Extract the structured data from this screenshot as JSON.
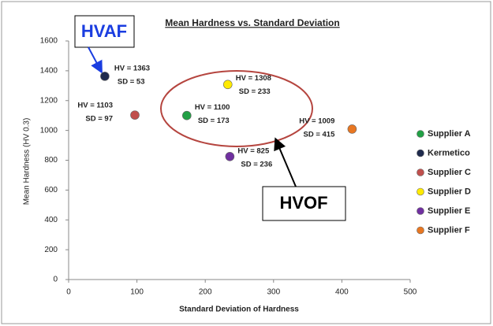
{
  "chart_data": {
    "type": "scatter",
    "title": "Mean Hardness vs. Standard Deviation",
    "x_label": "Standard Deviation  of Hardness",
    "y_label": "Mean Hardness  (HV 0.3)",
    "xlim": [
      0,
      500
    ],
    "xticks": [
      0,
      100,
      200,
      300,
      400,
      500
    ],
    "ylim": [
      0,
      1600
    ],
    "yticks": [
      0,
      200,
      400,
      600,
      800,
      1000,
      1200,
      1400,
      1600
    ],
    "legend": "right",
    "series": [
      {
        "name": "Supplier A",
        "color": "#22a045",
        "x": [
          173
        ],
        "values": [
          1100
        ],
        "value_labels": [
          "HV = 1100"
        ],
        "x_value_labels": [
          "SD = 173"
        ]
      },
      {
        "name": "Kermetico",
        "color": "#1f2b4d",
        "x": [
          53
        ],
        "values": [
          1363
        ],
        "value_labels": [
          "HV = 1363"
        ],
        "x_value_labels": [
          "SD = 53"
        ]
      },
      {
        "name": "Supplier C",
        "color": "#c0504d",
        "x": [
          97
        ],
        "values": [
          1103
        ],
        "value_labels": [
          "HV = 1103"
        ],
        "x_value_labels": [
          "SD = 97"
        ]
      },
      {
        "name": "Supplier D",
        "color": "#ffea00",
        "x": [
          233
        ],
        "values": [
          1308
        ],
        "value_labels": [
          "HV = 1308"
        ],
        "x_value_labels": [
          "SD = 233"
        ]
      },
      {
        "name": "Supplier E",
        "color": "#7030a0",
        "x": [
          236
        ],
        "values": [
          825
        ],
        "value_labels": [
          "HV = 825"
        ],
        "x_value_labels": [
          "SD = 236"
        ]
      },
      {
        "name": "Supplier F",
        "color": "#e87722",
        "x": [
          415
        ],
        "values": [
          1009
        ],
        "value_labels": [
          "HV = 1009"
        ],
        "x_value_labels": [
          "SD = 415"
        ]
      }
    ],
    "annotations": [
      "HVAF",
      "HVOF"
    ]
  }
}
